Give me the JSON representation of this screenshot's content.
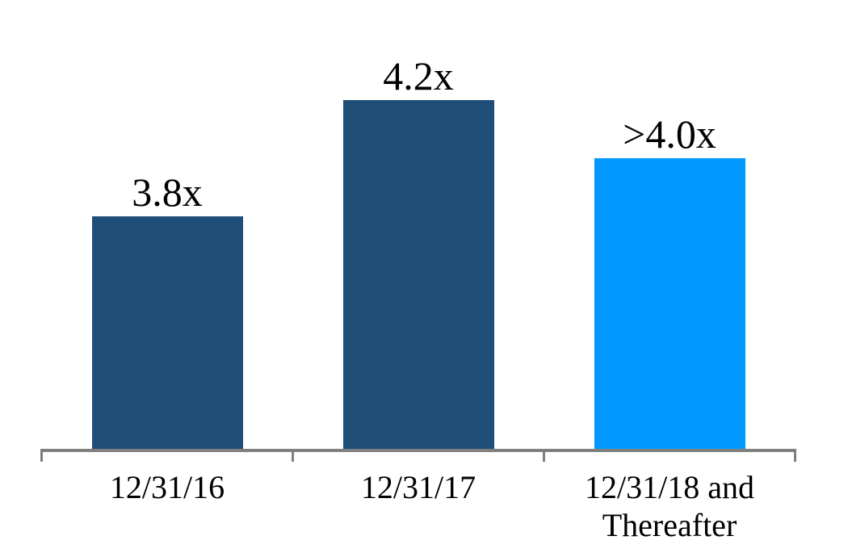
{
  "chart_data": {
    "type": "bar",
    "categories": [
      "12/31/16",
      "12/31/17",
      "12/31/18 and Thereafter"
    ],
    "values": [
      3.8,
      4.2,
      4.0
    ],
    "value_labels": [
      "3.8x",
      "4.2x",
      ">4.0x"
    ],
    "bar_colors": [
      "#1F4E79",
      "#1F4E79",
      "#0099FF"
    ],
    "title": "",
    "xlabel": "",
    "ylabel": "",
    "ylim": [
      3.0,
      4.65
    ],
    "value_axis_visible": false,
    "grid": false,
    "legend": "none",
    "axis_line_color": "#7F7F7F",
    "text_color": "#000000",
    "background_color": "#FFFFFF"
  }
}
